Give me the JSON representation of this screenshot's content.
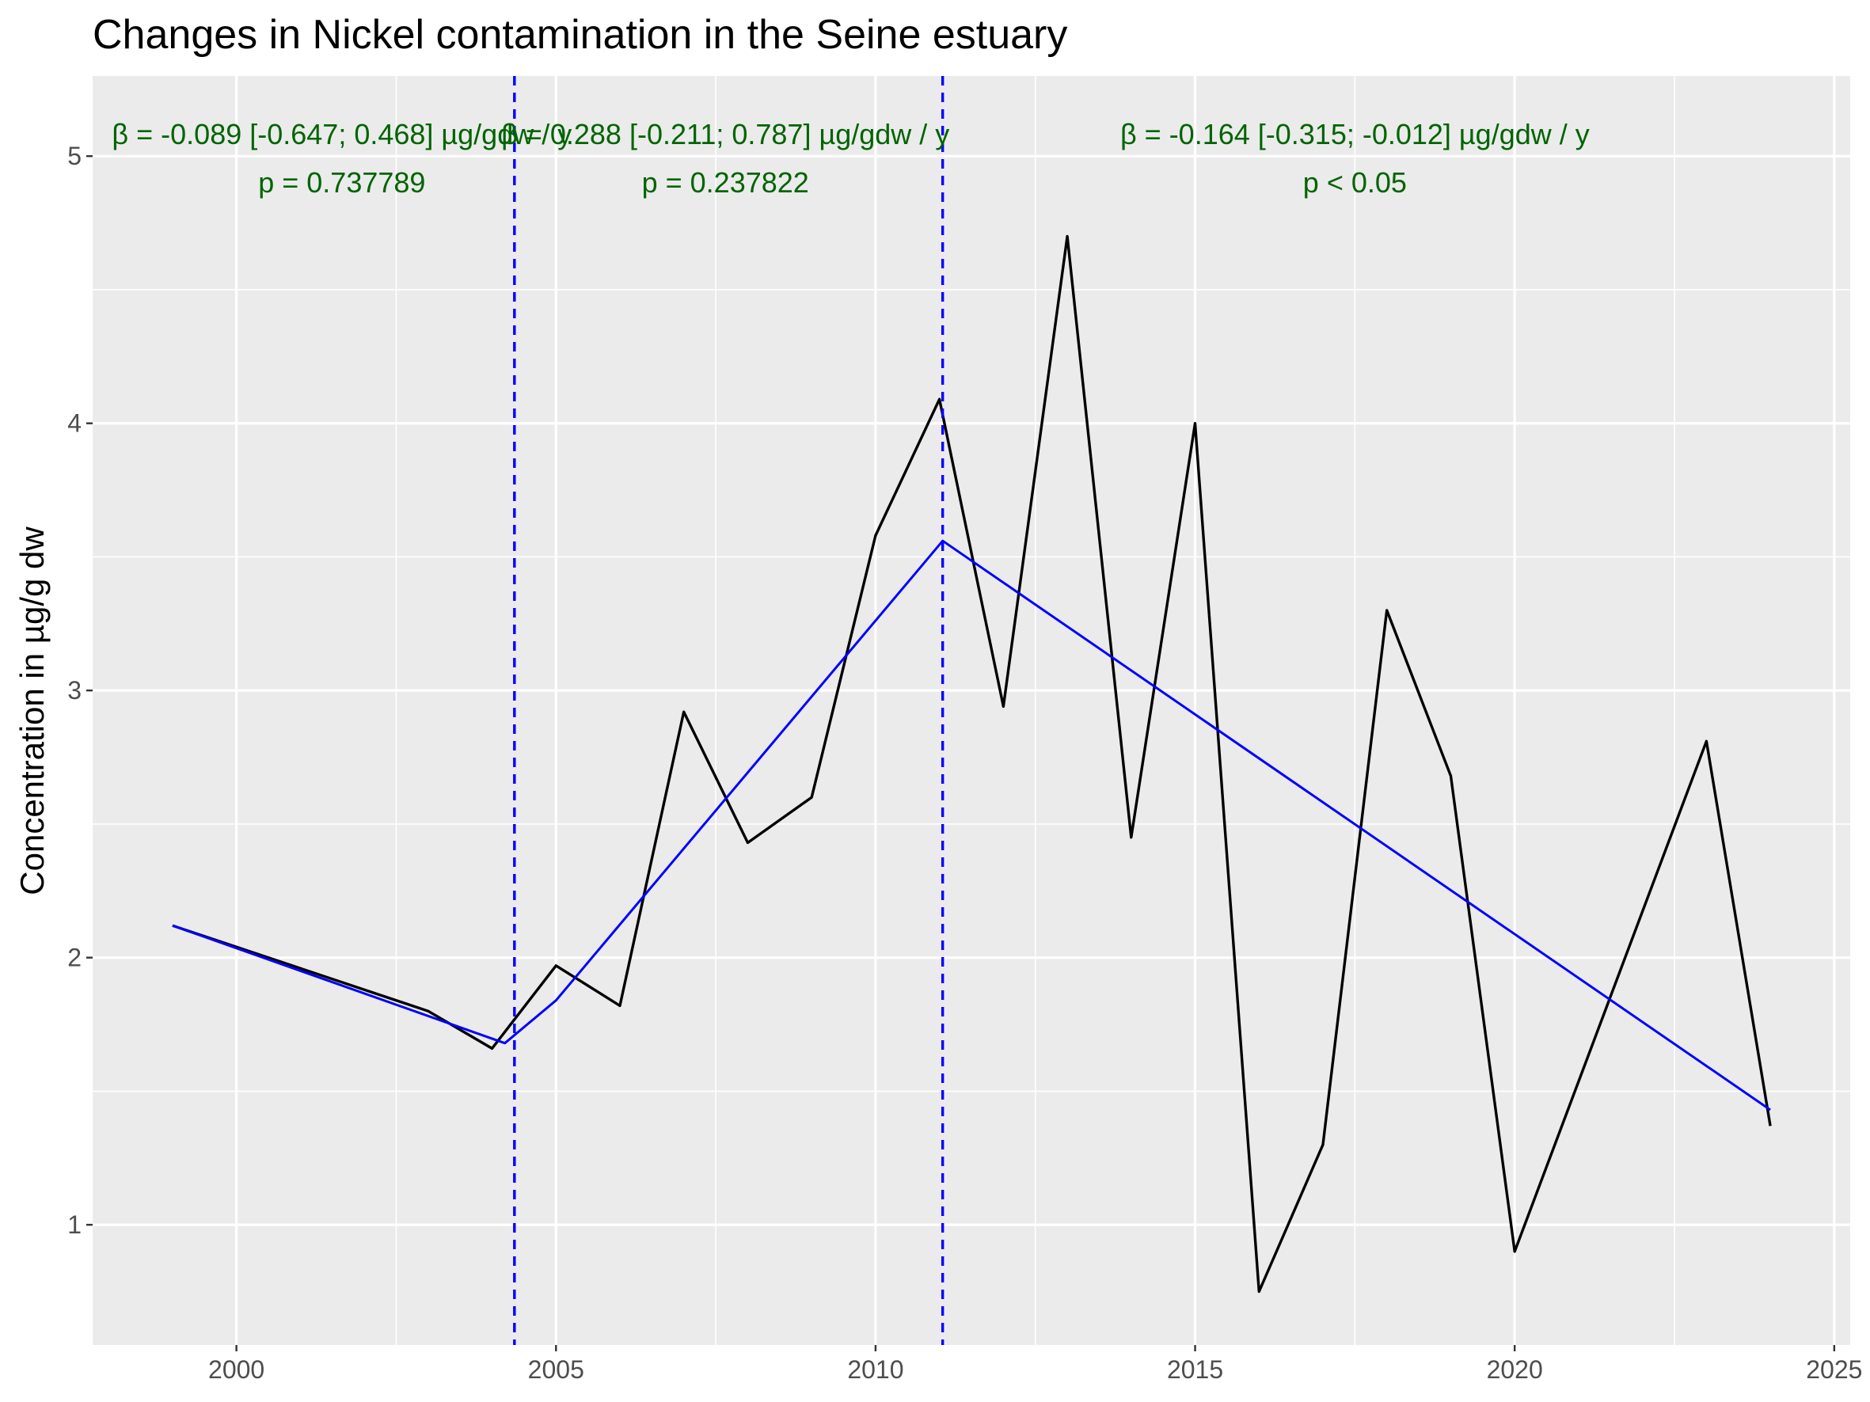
{
  "chart_data": {
    "type": "line",
    "title": "Changes in Nickel contamination in the Seine estuary",
    "xlabel": "",
    "ylabel": "Concentration in µg/g dw",
    "xlim": [
      1997.75,
      2025.25
    ],
    "ylim": [
      0.55,
      5.3
    ],
    "x_ticks": [
      2000,
      2005,
      2010,
      2015,
      2020,
      2025
    ],
    "y_ticks": [
      1,
      2,
      3,
      4,
      5
    ],
    "grid": true,
    "background": "#ebebeb",
    "series": [
      {
        "color": "#000000",
        "x": [
          1999,
          2003,
          2004,
          2005,
          2006,
          2007,
          2008,
          2009,
          2010,
          2011,
          2012,
          2013,
          2014,
          2015,
          2016,
          2017,
          2018,
          2019,
          2020,
          2023,
          2024
        ],
        "y": [
          2.12,
          1.8,
          1.66,
          1.97,
          1.82,
          2.92,
          2.43,
          2.6,
          3.58,
          4.09,
          2.94,
          4.7,
          2.45,
          4.0,
          0.75,
          1.3,
          3.3,
          2.68,
          0.9,
          2.81,
          1.37
        ]
      },
      {
        "color": "#0000ff",
        "x": [
          1999,
          2004.2,
          2005,
          2011.05,
          2024
        ],
        "y": [
          2.12,
          1.68,
          1.84,
          3.56,
          1.43
        ]
      }
    ],
    "breakpoints": [
      2004.35,
      2011.05
    ],
    "breakpoint_color": "#0000ff",
    "annotations": [
      {
        "line1": "β = -0.089 [-0.647; 0.468] µg/gdw / y",
        "line2": "p = 0.737789",
        "x": 2001.65
      },
      {
        "line1": "β = 0.288 [-0.211; 0.787] µg/gdw / y",
        "line2": "p = 0.237822",
        "x": 2007.65
      },
      {
        "line1": "β = -0.164 [-0.315; -0.012] µg/gdw / y",
        "line2": "p < 0.05",
        "x": 2017.5
      }
    ],
    "annotation_y": [
      5.08,
      4.9
    ],
    "annotation_color": "#006400"
  }
}
